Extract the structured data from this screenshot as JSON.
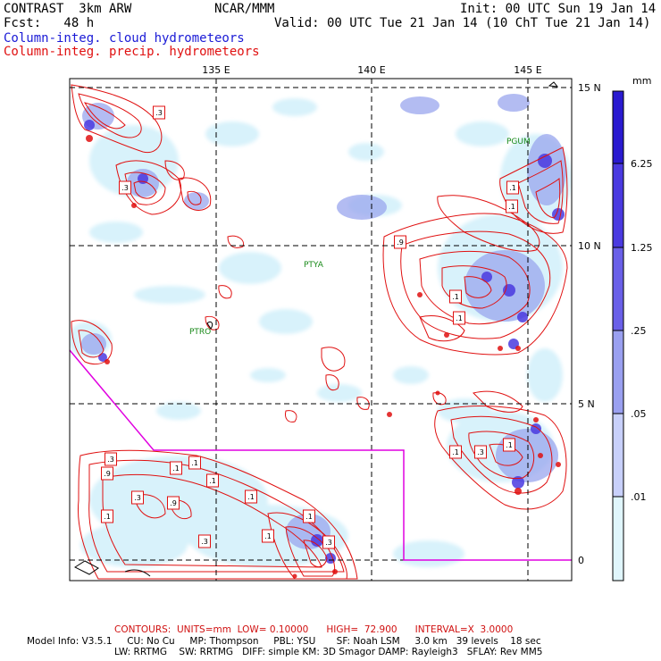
{
  "header": {
    "line1_left": "CONTRAST  3km ARW",
    "line1_mid": "NCAR/MMM",
    "line1_right": "Init: 00 UTC Sun 19 Jan 14",
    "line2_left": "Fcst:   48 h",
    "line2_right": "Valid: 00 UTC Tue 21 Jan 14 (10 ChT Tue 21 Jan 14)",
    "line3": "Column-integ. cloud hydrometeors",
    "line4": "Column-integ. precip. hydrometeors"
  },
  "map": {
    "lon_labels": [
      "135 E",
      "140 E",
      "145 E"
    ],
    "lat_labels": [
      "15 N",
      "10 N",
      "5 N",
      "0"
    ],
    "stations": [
      "PGUM",
      "PTYA",
      "PTRO"
    ],
    "contour_labels": [
      ".1",
      ".1",
      ".1",
      ".1",
      ".9",
      ".1",
      ".1",
      ".3",
      ".1",
      ".1",
      ".3",
      ".1",
      ".1",
      ".1",
      ".3",
      ".1",
      ".1",
      ".9",
      ".1",
      ".3",
      ".3",
      ".9",
      ".1",
      ".3",
      ".3"
    ],
    "colors": {
      "boundary": "#e000e0",
      "contour": "#e01010",
      "grid": "#000000",
      "station": "#1a8a1a"
    }
  },
  "colorbar": {
    "unit": "mm",
    "labels": [
      "6.25",
      "1.25",
      ".25",
      ".05",
      ".01"
    ],
    "colors": [
      "#2a1ad0",
      "#4a3ae0",
      "#6a60e8",
      "#9aa0f0",
      "#c8d0fa",
      "#e0f6fc",
      "#ffffff"
    ]
  },
  "footer": {
    "contours": "CONTOURS:  UNITS=mm  LOW= 0.10000      HIGH=  72.900      INTERVAL=X  3.0000",
    "model_line1": "Model Info: V3.5.1     CU: No Cu     MP: Thompson     PBL: YSU       SF: Noah LSM     3.0 km   39 levels    18 sec",
    "model_line2": "LW: RRTMG    SW: RRTMG   DIFF: simple KM: 3D Smagor DAMP: Rayleigh3   SFLAY: Rev MM5"
  }
}
